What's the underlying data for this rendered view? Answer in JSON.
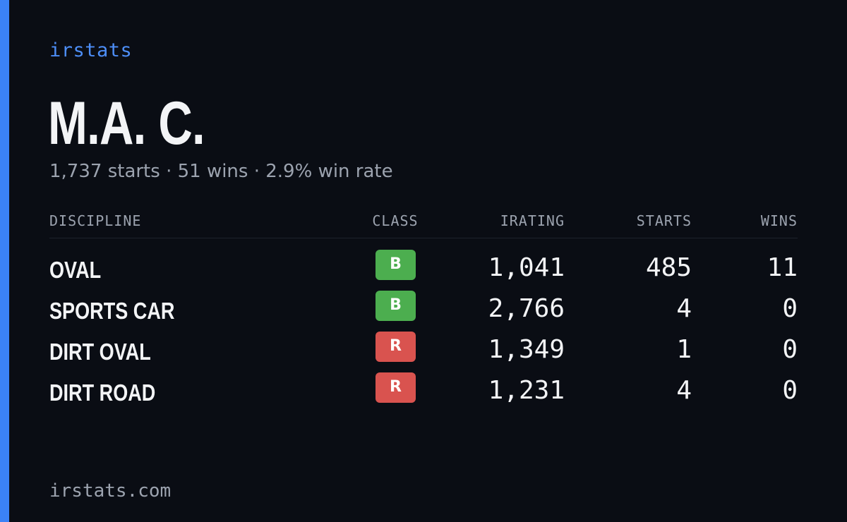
{
  "brand": "irstats",
  "driver": {
    "name": "M.A. C.",
    "summary": "1,737 starts · 51 wins · 2.9% win rate"
  },
  "table": {
    "headers": {
      "discipline": "DISCIPLINE",
      "class": "CLASS",
      "irating": "IRATING",
      "starts": "STARTS",
      "wins": "WINS"
    },
    "rows": [
      {
        "discipline": "OVAL",
        "class": "B",
        "class_color": "#4cae4f",
        "irating": "1,041",
        "starts": "485",
        "wins": "11"
      },
      {
        "discipline": "SPORTS CAR",
        "class": "B",
        "class_color": "#4cae4f",
        "irating": "2,766",
        "starts": "4",
        "wins": "0"
      },
      {
        "discipline": "DIRT OVAL",
        "class": "R",
        "class_color": "#d9534f",
        "irating": "1,349",
        "starts": "1",
        "wins": "0"
      },
      {
        "discipline": "DIRT ROAD",
        "class": "R",
        "class_color": "#d9534f",
        "irating": "1,231",
        "starts": "4",
        "wins": "0"
      }
    ]
  },
  "footer": "irstats.com",
  "colors": {
    "accent": "#3b82f6",
    "background": "#0a0d14"
  }
}
